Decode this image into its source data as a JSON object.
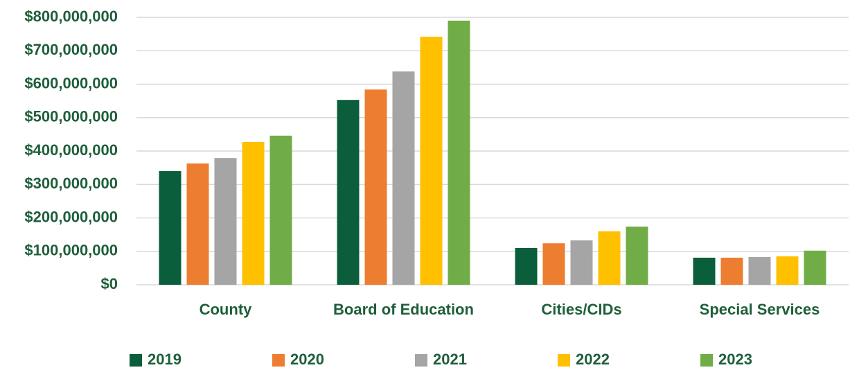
{
  "chart_data": {
    "type": "bar",
    "categories": [
      "County",
      "Board of Education",
      "Cities/CIDs",
      "Special Services"
    ],
    "series": [
      {
        "name": "2019",
        "color": "#0b5e3c",
        "values": [
          340000000,
          553000000,
          110000000,
          81000000
        ]
      },
      {
        "name": "2020",
        "color": "#ed7d31",
        "values": [
          363000000,
          584000000,
          124000000,
          81000000
        ]
      },
      {
        "name": "2021",
        "color": "#a5a5a5",
        "values": [
          379000000,
          638000000,
          133000000,
          83000000
        ]
      },
      {
        "name": "2022",
        "color": "#ffc000",
        "values": [
          427000000,
          742000000,
          160000000,
          85000000
        ]
      },
      {
        "name": "2023",
        "color": "#70ad47",
        "values": [
          446000000,
          790000000,
          174000000,
          102000000
        ]
      }
    ],
    "ylim": [
      0,
      800000000
    ],
    "yticks": [
      {
        "value": 0,
        "label": "$0"
      },
      {
        "value": 100000000,
        "label": "$100,000,000"
      },
      {
        "value": 200000000,
        "label": "$200,000,000"
      },
      {
        "value": 300000000,
        "label": "$300,000,000"
      },
      {
        "value": 400000000,
        "label": "$400,000,000"
      },
      {
        "value": 500000000,
        "label": "$500,000,000"
      },
      {
        "value": 600000000,
        "label": "$600,000,000"
      },
      {
        "value": 700000000,
        "label": "$700,000,000"
      },
      {
        "value": 800000000,
        "label": "$800,000,000"
      }
    ],
    "grid": true,
    "legend": "bottom"
  }
}
